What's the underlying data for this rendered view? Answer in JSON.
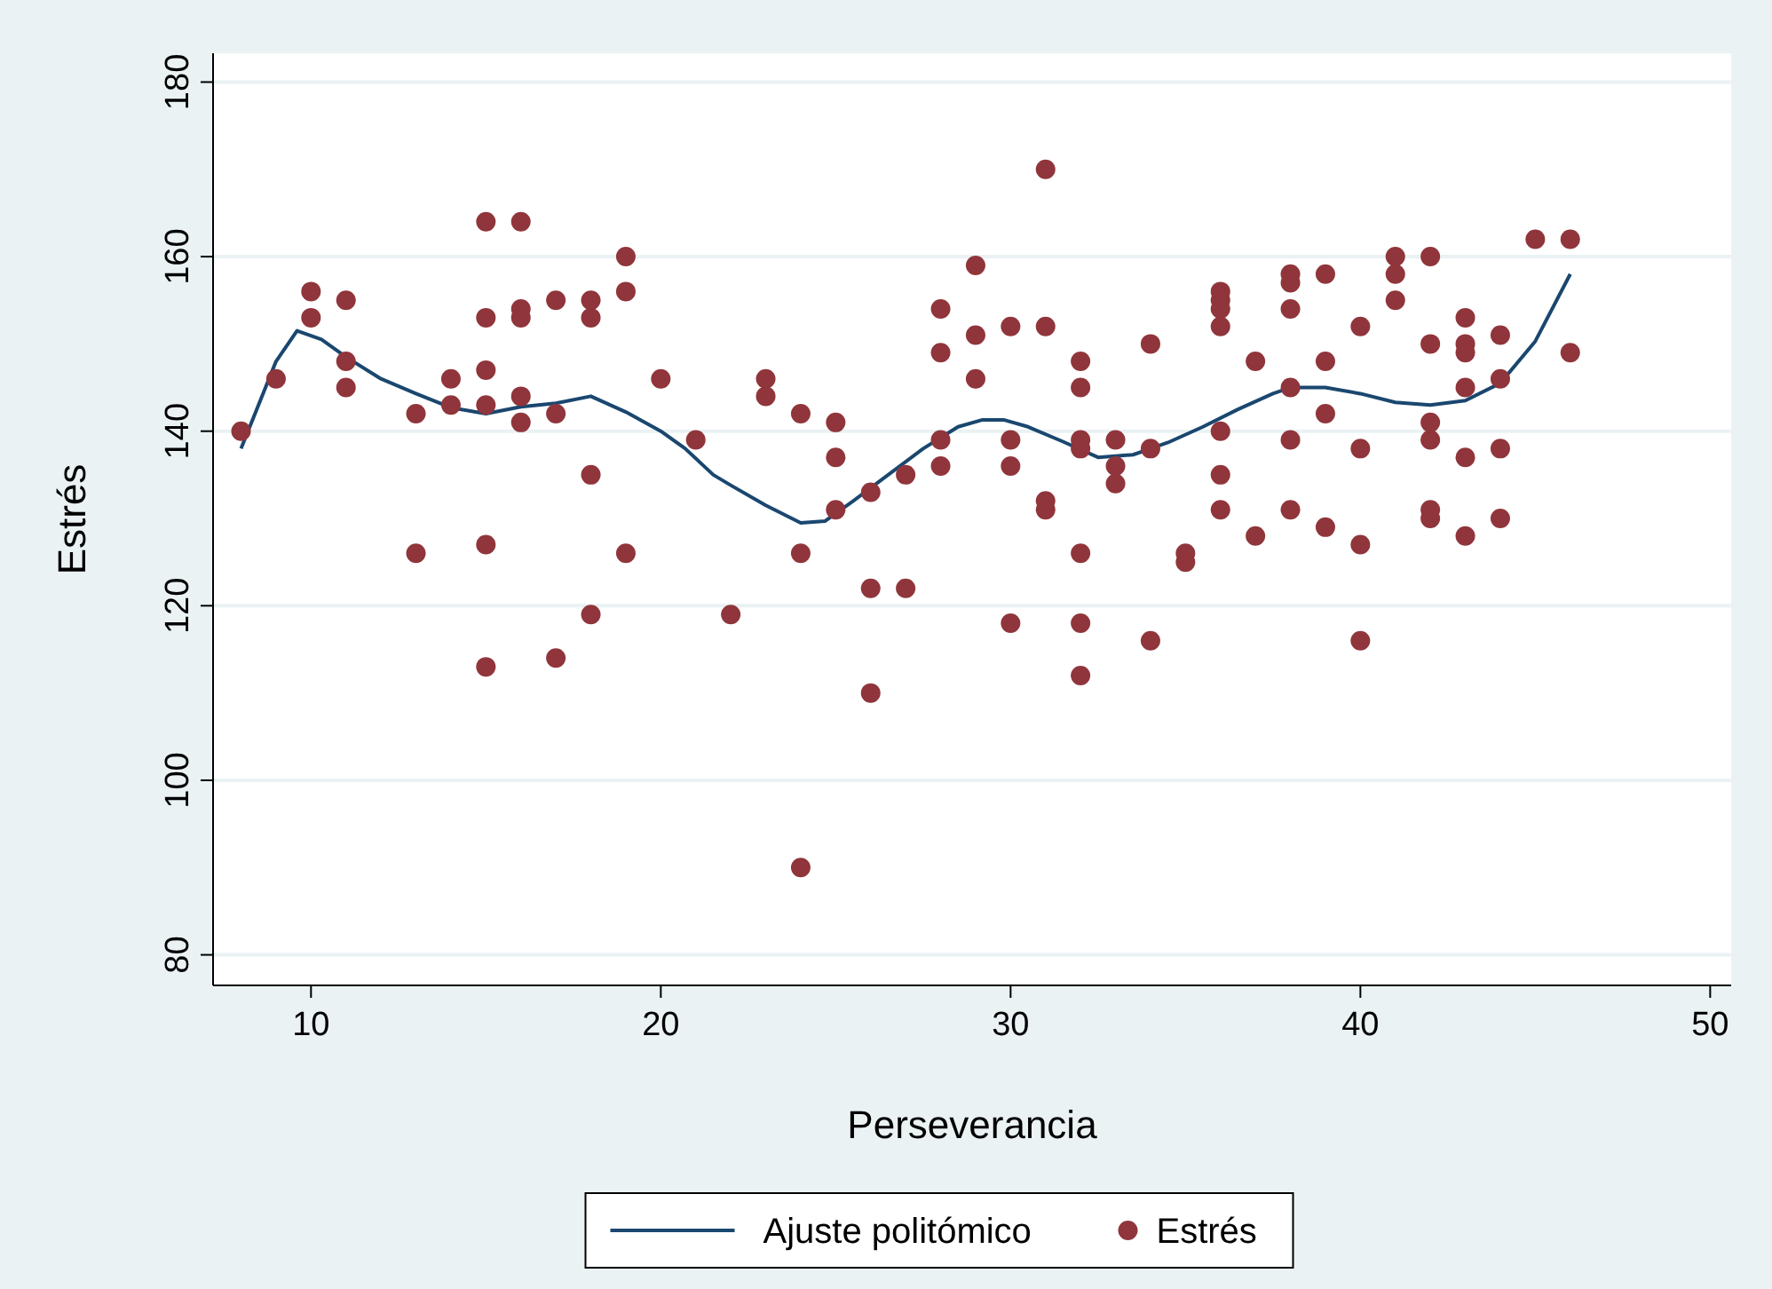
{
  "chart_data": {
    "type": "scatter",
    "xlabel": "Perseverancia",
    "ylabel": "Estrés",
    "xlim": [
      7.2,
      50.6
    ],
    "ylim": [
      76.5,
      183.3
    ],
    "xticks": [
      10,
      20,
      30,
      40,
      50
    ],
    "yticks": [
      80,
      100,
      120,
      140,
      160,
      180
    ],
    "grid": "y",
    "legend": "bottom",
    "series": [
      {
        "name": "Ajuste politómico",
        "type": "line",
        "color": "#1a476f",
        "marker": "none",
        "x": [
          8,
          9,
          9.6,
          10.3,
          11,
          12,
          13,
          14,
          15,
          16,
          17,
          18,
          19,
          20,
          20.7,
          21.5,
          22,
          23,
          24,
          24.7,
          25.5,
          26.5,
          27.5,
          28.5,
          29.2,
          29.8,
          30.5,
          31.5,
          32.5,
          33.5,
          34.5,
          35.5,
          36.5,
          37.5,
          38,
          39,
          40,
          41,
          42,
          43,
          44,
          45,
          46
        ],
        "values": [
          138,
          148,
          151.5,
          150.5,
          148.5,
          146,
          144.3,
          142.7,
          142,
          142.8,
          143.2,
          144,
          142.2,
          140,
          138,
          135,
          133.8,
          131.5,
          129.5,
          129.7,
          132,
          135,
          138,
          140.5,
          141.3,
          141.3,
          140.5,
          138.8,
          137,
          137.3,
          138.7,
          140.5,
          142.5,
          144.3,
          145,
          145,
          144.3,
          143.3,
          143,
          143.5,
          145.5,
          150.3,
          158
        ]
      },
      {
        "name": "Estrés",
        "color": "#90353b",
        "marker": "circle",
        "x": [
          8,
          9,
          10,
          10,
          11,
          11,
          11,
          13,
          13,
          14,
          14,
          15,
          15,
          15,
          15,
          15,
          15,
          16,
          16,
          16,
          16,
          16,
          17,
          17,
          17,
          18,
          18,
          18,
          18,
          19,
          19,
          19,
          20,
          21,
          22,
          23,
          23,
          24,
          24,
          24,
          25,
          25,
          25,
          26,
          26,
          26,
          27,
          27,
          28,
          28,
          28,
          28,
          29,
          29,
          29,
          30,
          30,
          30,
          30,
          31,
          31,
          31,
          31,
          32,
          32,
          32,
          32,
          32,
          32,
          32,
          33,
          33,
          33,
          34,
          34,
          34,
          35,
          35,
          36,
          36,
          36,
          36,
          36,
          36,
          36,
          37,
          37,
          38,
          38,
          38,
          38,
          38,
          38,
          39,
          39,
          39,
          39,
          40,
          40,
          40,
          40,
          41,
          41,
          41,
          42,
          42,
          42,
          42,
          42,
          42,
          43,
          43,
          43,
          43,
          43,
          43,
          44,
          44,
          44,
          44,
          45,
          46,
          46
        ],
        "values": [
          140,
          146,
          156,
          153,
          155,
          148,
          145,
          142,
          126,
          146,
          143,
          164,
          153,
          147,
          143,
          127,
          113,
          164,
          154,
          153,
          144,
          141,
          155,
          142,
          114,
          155,
          153,
          135,
          119,
          160,
          156,
          126,
          146,
          139,
          119,
          146,
          144,
          142,
          126,
          90,
          141,
          137,
          131,
          133,
          122,
          110,
          135,
          122,
          154,
          149,
          139,
          136,
          159,
          151,
          146,
          152,
          139,
          136,
          118,
          170,
          152,
          132,
          131,
          148,
          145,
          139,
          138,
          126,
          118,
          112,
          139,
          136,
          134,
          150,
          138,
          116,
          126,
          125,
          156,
          155,
          154,
          152,
          140,
          135,
          131,
          148,
          128,
          158,
          157,
          154,
          145,
          139,
          131,
          158,
          148,
          142,
          129,
          152,
          138,
          127,
          116,
          160,
          158,
          155,
          160,
          150,
          141,
          139,
          131,
          130,
          153,
          150,
          149,
          145,
          137,
          128,
          151,
          146,
          138,
          130,
          162,
          162,
          149
        ]
      }
    ]
  }
}
